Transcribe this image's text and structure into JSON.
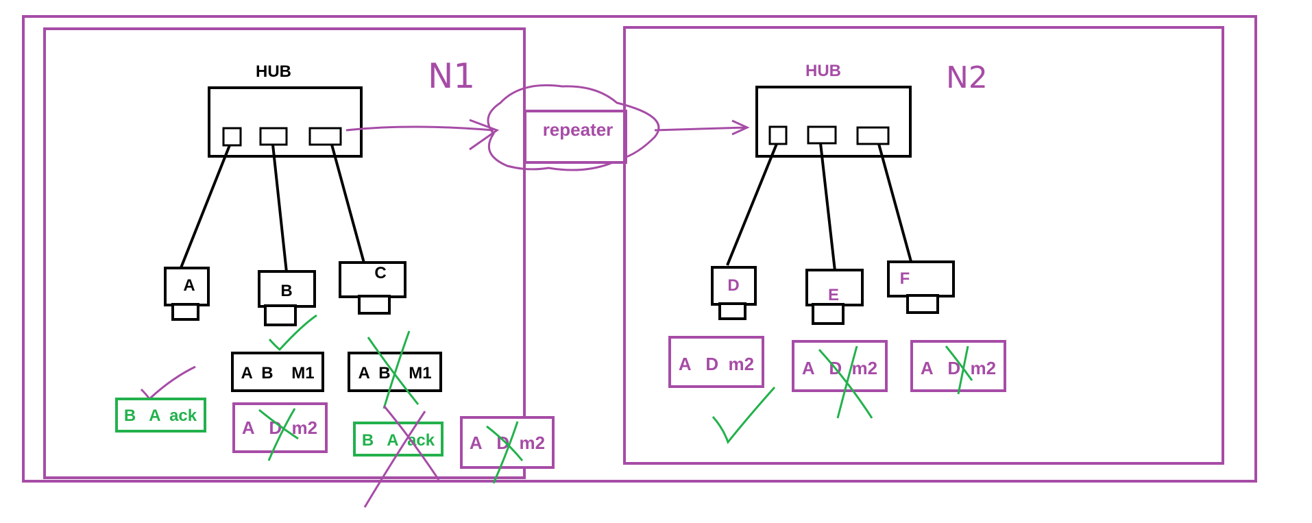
{
  "colors": {
    "purple": "#a64ca6",
    "black": "#000000",
    "green": "#22b14c",
    "background": "#ffffff"
  },
  "network1": {
    "name": "N1",
    "hub_label": "HUB",
    "hosts": [
      "A",
      "B",
      "C"
    ],
    "frames": {
      "frame_b_m1": "A  B    M1",
      "frame_c_m1": "A  B    M1",
      "ack_a": "B   A  ack",
      "ack_c": "B   A  ack",
      "m2_b": "A   D  m2",
      "m2_out": "A   D  m2"
    }
  },
  "repeater": {
    "label": "repeater"
  },
  "network2": {
    "name": "N2",
    "hub_label": "HUB",
    "hosts": [
      "D",
      "E",
      "F"
    ],
    "frames": {
      "m2_d": "A   D  m2",
      "m2_e": "A   D  m2",
      "m2_f": "A   D  m2"
    }
  }
}
